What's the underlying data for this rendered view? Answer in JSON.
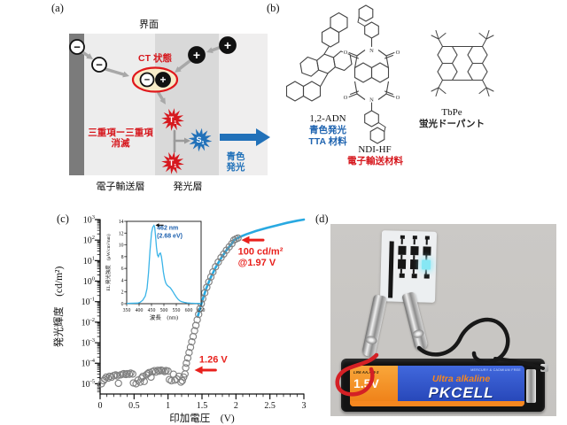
{
  "figure": {
    "panel_labels": {
      "a": "(a)",
      "b": "(b)",
      "c": "(c)",
      "d": "(d)"
    }
  },
  "panel_a": {
    "interface_label": "界面",
    "ct_state_label": "CT 状態",
    "tta_lines": [
      "三重項ー三重項",
      "消滅"
    ],
    "blue_emission_lines": [
      "青色",
      "発光"
    ],
    "etl_label": "電子輸送層",
    "eml_label": "発光層",
    "electron_symbol": "−",
    "hole_symbol": "+",
    "t1": {
      "main": "T",
      "sub": "1"
    },
    "s1": {
      "main": "S",
      "sub": "1"
    },
    "colors": {
      "red": "#d6181e",
      "blue": "#2171b9",
      "arrow_gray": "#a8a8a8",
      "ct_fill": "#f7ecc9",
      "ct_stroke": "#e0181c"
    }
  },
  "panel_b": {
    "molecules": [
      {
        "name": "1,2-ADN",
        "desc_lines": [
          "青色発光",
          "TTA 材料"
        ],
        "desc_color": "#1f64b0"
      },
      {
        "name": "NDI-HF",
        "desc_lines": [
          "電子輸送材料"
        ],
        "desc_color": "#d6181e",
        "atom_o": "O",
        "atom_n": "N"
      },
      {
        "name": "TbPe",
        "desc_lines": [
          "蛍光ドーパント"
        ],
        "desc_color": "#222222"
      }
    ]
  },
  "chart_data": [
    {
      "type": "scatter",
      "xlabel": "印加電圧　(V)",
      "ylabel": "発光輝度　(cd/m²)",
      "xlim": [
        0,
        3
      ],
      "x_ticks": [
        0,
        0.5,
        1,
        1.5,
        2,
        2.5,
        3
      ],
      "x_tick_labels": [
        "0",
        "0.5",
        "1",
        "1.5",
        "2",
        "2.5",
        "3"
      ],
      "y_scale": "log",
      "y_tick_exponents": [
        3,
        2,
        1,
        0,
        -1,
        -2,
        -3,
        -4,
        -5
      ],
      "ylim_exponents": [
        -5.5,
        3
      ],
      "grid": false,
      "series": [
        {
          "name": "EL luminance (measured)",
          "marker": "circle",
          "color": "#808080",
          "points": [
            [
              0.02,
              1e-05
            ],
            [
              0.05,
              1.4e-05
            ],
            [
              0.07,
              1.7e-05
            ],
            [
              0.09,
              2.1e-05
            ],
            [
              0.12,
              1.9e-05
            ],
            [
              0.14,
              2.3e-05
            ],
            [
              0.17,
              2.1e-05
            ],
            [
              0.2,
              2.5e-05
            ],
            [
              0.23,
              2.7e-05
            ],
            [
              0.25,
              2.4e-05
            ],
            [
              0.27,
              1.05e-05
            ],
            [
              0.3,
              2.7e-05
            ],
            [
              0.33,
              2.9e-05
            ],
            [
              0.35,
              3.1e-05
            ],
            [
              0.38,
              2.8e-05
            ],
            [
              0.4,
              3.1e-05
            ],
            [
              0.43,
              2.9e-05
            ],
            [
              0.45,
              3.3e-05
            ],
            [
              0.48,
              3e-05
            ],
            [
              0.49,
              1.1e-05
            ],
            [
              0.53,
              1e-05
            ],
            [
              0.56,
              1.5e-05
            ],
            [
              0.59,
              1.2e-05
            ],
            [
              0.61,
              1.9e-05
            ],
            [
              0.63,
              2.3e-05
            ],
            [
              0.65,
              1.3e-05
            ],
            [
              0.68,
              2.7e-05
            ],
            [
              0.7,
              3.1e-05
            ],
            [
              0.72,
              3.5e-05
            ],
            [
              0.75,
              2.1e-05
            ],
            [
              0.77,
              3.9e-05
            ],
            [
              0.8,
              4.3e-05
            ],
            [
              0.82,
              3.7e-05
            ],
            [
              0.85,
              4.5e-05
            ],
            [
              0.87,
              4.1e-05
            ],
            [
              0.9,
              4.6e-05
            ],
            [
              0.92,
              4.3e-05
            ],
            [
              0.95,
              3.9e-05
            ],
            [
              0.97,
              4.4e-05
            ],
            [
              1.0,
              4.1e-05
            ],
            [
              1.02,
              1.6e-05
            ],
            [
              1.05,
              1.4e-05
            ],
            [
              1.08,
              2.9e-05
            ],
            [
              1.1,
              1.5e-05
            ],
            [
              1.13,
              1.7e-05
            ],
            [
              1.16,
              2.3e-05
            ],
            [
              1.19,
              1.2e-05
            ],
            [
              1.21,
              1.4e-05
            ],
            [
              1.23,
              2.1e-05
            ],
            [
              1.25,
              3e-05
            ],
            [
              1.26,
              6e-05
            ],
            [
              1.27,
              0.0001
            ],
            [
              1.29,
              0.00018
            ],
            [
              1.31,
              0.00033
            ],
            [
              1.33,
              0.0006
            ],
            [
              1.35,
              0.0011
            ],
            [
              1.37,
              0.002
            ],
            [
              1.39,
              0.0038
            ],
            [
              1.41,
              0.007
            ],
            [
              1.43,
              0.013
            ],
            [
              1.45,
              0.024
            ],
            [
              1.47,
              0.045
            ],
            [
              1.49,
              0.08
            ],
            [
              1.51,
              0.14
            ],
            [
              1.54,
              0.27
            ],
            [
              1.57,
              0.5
            ],
            [
              1.6,
              0.92
            ],
            [
              1.63,
              1.6
            ],
            [
              1.66,
              2.8
            ],
            [
              1.7,
              5.0
            ],
            [
              1.74,
              8.5
            ],
            [
              1.78,
              14
            ],
            [
              1.82,
              21
            ],
            [
              1.86,
              32
            ],
            [
              1.9,
              47
            ],
            [
              1.94,
              67
            ],
            [
              1.97,
              100
            ],
            [
              2.0,
              113
            ],
            [
              2.03,
              126
            ]
          ]
        },
        {
          "name": "guide line",
          "type": "line",
          "color": "#29a9e1",
          "points": [
            [
              1.44,
              0.02
            ],
            [
              1.5,
              0.1
            ],
            [
              1.56,
              0.42
            ],
            [
              1.62,
              1.3
            ],
            [
              1.7,
              4.6
            ],
            [
              1.78,
              13
            ],
            [
              1.86,
              32
            ],
            [
              1.94,
              68
            ],
            [
              1.97,
              100
            ],
            [
              2.05,
              140
            ],
            [
              2.15,
              190
            ],
            [
              2.3,
              280
            ],
            [
              2.45,
              390
            ],
            [
              2.6,
              520
            ],
            [
              2.75,
              690
            ],
            [
              2.9,
              880
            ],
            [
              3.0,
              1000
            ]
          ]
        }
      ],
      "annotations": [
        {
          "lines": [
            "100 cd/m²",
            "@1.97 V"
          ],
          "color": "#e8201c",
          "text_at": [
            2.03,
            20
          ],
          "arrow_tip": [
            2.08,
            100
          ],
          "arrow_tail": [
            2.4,
            100
          ]
        },
        {
          "lines": [
            "1.26 V"
          ],
          "color": "#e8201c",
          "text_at": [
            1.46,
            0.00011
          ],
          "arrow_tip": [
            1.39,
            4.6e-05
          ],
          "arrow_tail": [
            1.7,
            4.6e-05
          ]
        }
      ]
    },
    {
      "type": "line",
      "xlabel": "波長　(nm)",
      "ylabel": "EL 発光強度　(μW/cm²/nm)",
      "xlim": [
        350,
        650
      ],
      "ylim": [
        0,
        14
      ],
      "x_ticks": [
        350,
        400,
        450,
        500,
        550,
        600,
        650
      ],
      "y_ticks": [
        0,
        2,
        4,
        6,
        8,
        10,
        12,
        14
      ],
      "color": "#3ab4e8",
      "annotation": {
        "lines": [
          "462 nm",
          "(2.68 eV)"
        ],
        "color": "#1b5fae",
        "text_at": [
          472,
          12.6
        ],
        "arrow_tip": [
          466,
          13.35
        ],
        "arrow_tail": [
          497,
          13.35
        ]
      },
      "points": [
        [
          350,
          0.05
        ],
        [
          395,
          0.1
        ],
        [
          405,
          0.25
        ],
        [
          415,
          0.6
        ],
        [
          425,
          1.3
        ],
        [
          432,
          2.6
        ],
        [
          438,
          5.2
        ],
        [
          444,
          9
        ],
        [
          450,
          12
        ],
        [
          455,
          13
        ],
        [
          460,
          13.3
        ],
        [
          463,
          13
        ],
        [
          466,
          11.6
        ],
        [
          470,
          9.6
        ],
        [
          474,
          8.3
        ],
        [
          478,
          8
        ],
        [
          482,
          8.5
        ],
        [
          486,
          8.6
        ],
        [
          490,
          8
        ],
        [
          494,
          6.8
        ],
        [
          498,
          5.4
        ],
        [
          503,
          4.2
        ],
        [
          508,
          3.5
        ],
        [
          514,
          3.1
        ],
        [
          520,
          2.9
        ],
        [
          526,
          2.7
        ],
        [
          531,
          2.4
        ],
        [
          537,
          2.0
        ],
        [
          543,
          1.6
        ],
        [
          549,
          1.2
        ],
        [
          556,
          0.8
        ],
        [
          564,
          0.5
        ],
        [
          572,
          0.33
        ],
        [
          582,
          0.22
        ],
        [
          594,
          0.14
        ],
        [
          608,
          0.09
        ],
        [
          625,
          0.06
        ],
        [
          650,
          0.04
        ]
      ]
    }
  ],
  "panel_d": {
    "battery": {
      "model": "LR6 AA.AM-3",
      "voltage": "1.5V",
      "claim": "MERCURY & CADMIUM FREE",
      "grade": "Ultra alkaline",
      "brand": "PKCELL"
    }
  }
}
